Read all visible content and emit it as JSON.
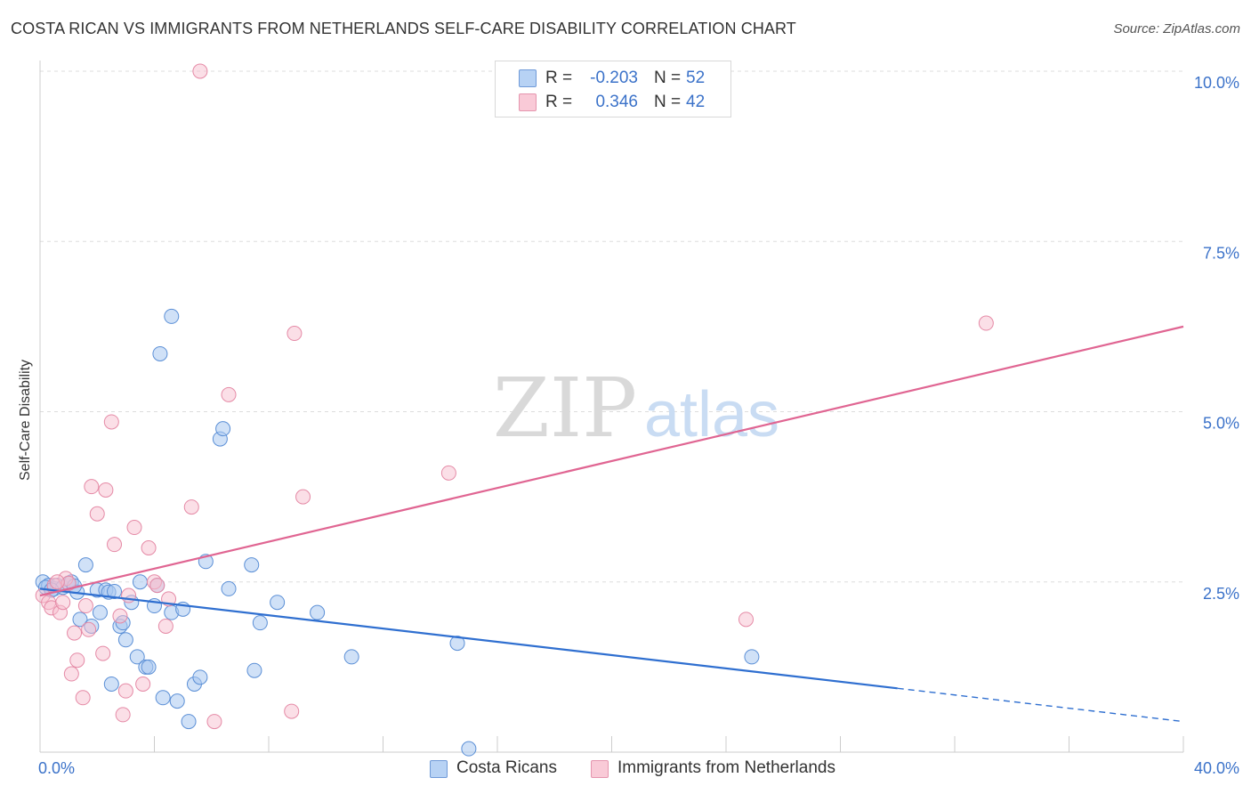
{
  "title": "COSTA RICAN VS IMMIGRANTS FROM NETHERLANDS SELF-CARE DISABILITY CORRELATION CHART",
  "source": "Source: ZipAtlas.com",
  "watermark": {
    "zip": "ZIP",
    "atlas": "atlas"
  },
  "legend": {
    "rows": [
      {
        "r_label": "R =",
        "r_value": "-0.203",
        "n_label": "N =",
        "n_value": "52"
      },
      {
        "r_label": "R =",
        "r_value": "0.346",
        "n_label": "N =",
        "n_value": "42"
      }
    ]
  },
  "bottom_legend": {
    "series1": "Costa Ricans",
    "series2": "Immigrants from Netherlands"
  },
  "colors": {
    "blue_fill": "#a9c8f0",
    "blue_stroke": "#5b8fd6",
    "blue_line": "#2f6fd0",
    "pink_fill": "#f7c0cf",
    "pink_stroke": "#e58aa6",
    "pink_line": "#e06592",
    "axis_text": "#3b72c9",
    "grid": "#dddddd"
  },
  "chart_data": {
    "type": "scatter",
    "title": "COSTA RICAN VS IMMIGRANTS FROM NETHERLANDS SELF-CARE DISABILITY CORRELATION CHART",
    "xlabel": "",
    "ylabel": "Self-Care Disability",
    "xlim": [
      0,
      40
    ],
    "ylim": [
      0,
      10
    ],
    "x_tick_labels": [
      {
        "value": 0,
        "label": "0.0%"
      },
      {
        "value": 40,
        "label": "40.0%"
      }
    ],
    "y_tick_labels": [
      {
        "value": 2.5,
        "label": "2.5%"
      },
      {
        "value": 5.0,
        "label": "5.0%"
      },
      {
        "value": 7.5,
        "label": "7.5%"
      },
      {
        "value": 10.0,
        "label": "10.0%"
      }
    ],
    "series": [
      {
        "name": "Costa Ricans",
        "r": -0.203,
        "n": 52,
        "trend": {
          "x_start": 0,
          "y_start": 2.4,
          "x_solid_end": 30,
          "x_end": 40,
          "y_end": 0.45
        },
        "points": [
          [
            0.1,
            2.5
          ],
          [
            0.3,
            2.45
          ],
          [
            0.5,
            2.4
          ],
          [
            0.6,
            2.45
          ],
          [
            0.8,
            2.42
          ],
          [
            1.0,
            2.48
          ],
          [
            1.1,
            2.5
          ],
          [
            1.3,
            2.35
          ],
          [
            1.4,
            1.95
          ],
          [
            1.6,
            2.75
          ],
          [
            1.8,
            1.85
          ],
          [
            2.0,
            2.38
          ],
          [
            2.1,
            2.05
          ],
          [
            2.3,
            2.38
          ],
          [
            2.4,
            2.35
          ],
          [
            2.6,
            2.36
          ],
          [
            2.5,
            1.0
          ],
          [
            2.8,
            1.85
          ],
          [
            2.9,
            1.9
          ],
          [
            3.0,
            1.65
          ],
          [
            3.2,
            2.2
          ],
          [
            3.4,
            1.4
          ],
          [
            3.5,
            2.5
          ],
          [
            3.7,
            1.25
          ],
          [
            3.8,
            1.25
          ],
          [
            4.0,
            2.15
          ],
          [
            4.1,
            2.45
          ],
          [
            4.3,
            0.8
          ],
          [
            4.6,
            2.05
          ],
          [
            4.8,
            0.75
          ],
          [
            5.0,
            2.1
          ],
          [
            5.2,
            0.45
          ],
          [
            5.4,
            1.0
          ],
          [
            5.6,
            1.1
          ],
          [
            5.8,
            2.8
          ],
          [
            6.3,
            4.6
          ],
          [
            6.4,
            4.75
          ],
          [
            6.6,
            2.4
          ],
          [
            7.4,
            2.75
          ],
          [
            7.5,
            1.2
          ],
          [
            7.7,
            1.9
          ],
          [
            8.3,
            2.2
          ],
          [
            9.7,
            2.05
          ],
          [
            10.9,
            1.4
          ],
          [
            14.6,
            1.6
          ],
          [
            15.0,
            0.05
          ],
          [
            24.9,
            1.4
          ],
          [
            4.6,
            6.4
          ],
          [
            4.2,
            5.85
          ],
          [
            0.2,
            2.42
          ],
          [
            0.4,
            2.38
          ],
          [
            1.2,
            2.44
          ]
        ]
      },
      {
        "name": "Immigrants from Netherlands",
        "r": 0.346,
        "n": 42,
        "trend": {
          "x_start": 0,
          "y_start": 2.3,
          "x_end": 40,
          "y_end": 6.25
        },
        "points": [
          [
            0.1,
            2.3
          ],
          [
            0.3,
            2.2
          ],
          [
            0.4,
            2.12
          ],
          [
            0.5,
            2.45
          ],
          [
            0.7,
            2.05
          ],
          [
            0.8,
            2.2
          ],
          [
            0.9,
            2.55
          ],
          [
            1.0,
            2.48
          ],
          [
            1.2,
            1.75
          ],
          [
            1.3,
            1.35
          ],
          [
            1.5,
            0.8
          ],
          [
            1.6,
            2.15
          ],
          [
            1.7,
            1.8
          ],
          [
            1.1,
            1.15
          ],
          [
            1.8,
            3.9
          ],
          [
            2.0,
            3.5
          ],
          [
            2.2,
            1.45
          ],
          [
            2.3,
            3.85
          ],
          [
            2.5,
            4.85
          ],
          [
            2.6,
            3.05
          ],
          [
            2.8,
            2.0
          ],
          [
            2.9,
            0.55
          ],
          [
            3.0,
            0.9
          ],
          [
            3.1,
            2.3
          ],
          [
            3.3,
            3.3
          ],
          [
            3.6,
            1.0
          ],
          [
            3.8,
            3.0
          ],
          [
            4.0,
            2.5
          ],
          [
            4.4,
            1.85
          ],
          [
            4.5,
            2.25
          ],
          [
            5.3,
            3.6
          ],
          [
            5.6,
            10.0
          ],
          [
            6.1,
            0.45
          ],
          [
            6.6,
            5.25
          ],
          [
            8.8,
            0.6
          ],
          [
            8.9,
            6.15
          ],
          [
            9.2,
            3.75
          ],
          [
            14.3,
            4.1
          ],
          [
            24.7,
            1.95
          ],
          [
            33.1,
            6.3
          ],
          [
            4.1,
            2.45
          ],
          [
            0.6,
            2.5
          ]
        ]
      }
    ]
  }
}
